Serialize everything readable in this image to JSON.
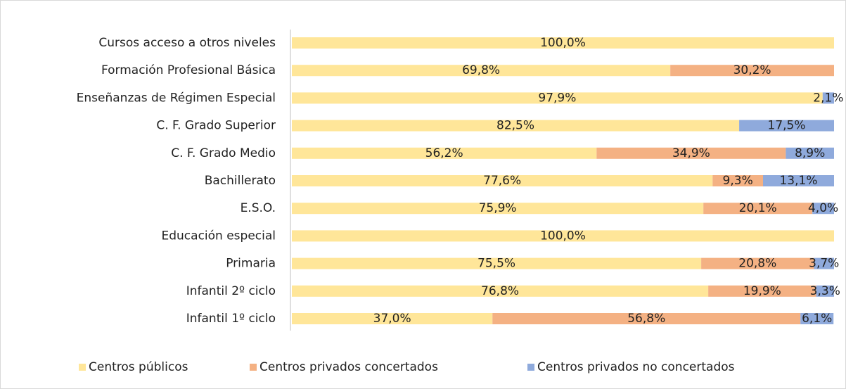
{
  "chart_data": {
    "type": "stacked-bar-horizontal",
    "categories": [
      "Cursos acceso a otros niveles",
      "Formación Profesional Básica",
      "Enseñanzas de Régimen Especial",
      "C. F. Grado Superior",
      "C. F. Grado Medio",
      "Bachillerato",
      "E.S.O.",
      "Educación especial",
      "Primaria",
      "Infantil 2º ciclo",
      "Infantil 1º ciclo"
    ],
    "xlim": [
      0,
      100
    ],
    "series": [
      {
        "name": "Centros públicos",
        "color": "#ffe699",
        "values": [
          100.0,
          69.8,
          97.9,
          82.5,
          56.2,
          77.6,
          75.9,
          100.0,
          75.5,
          76.8,
          37.0
        ],
        "value_labels": [
          "100,0%",
          "69,8%",
          "97,9%",
          "82,5%",
          "56,2%",
          "77,6%",
          "75,9%",
          "100,0%",
          "75,5%",
          "76,8%",
          "37,0%"
        ]
      },
      {
        "name": "Centros privados concertados",
        "color": "#f4b183",
        "values": [
          null,
          30.2,
          null,
          null,
          34.9,
          9.3,
          20.1,
          null,
          20.8,
          19.9,
          56.8
        ],
        "value_labels": [
          null,
          "30,2%",
          null,
          null,
          "34,9%",
          "9,3%",
          "20,1%",
          null,
          "20,8%",
          "19,9%",
          "56,8%"
        ]
      },
      {
        "name": "Centros privados no concertados",
        "color": "#8faadc",
        "values": [
          null,
          null,
          2.1,
          17.5,
          8.9,
          13.1,
          4.0,
          null,
          3.7,
          3.3,
          6.1
        ],
        "value_labels": [
          null,
          null,
          "2,1%",
          "17,5%",
          "8,9%",
          "13,1%",
          "4,0%",
          null,
          "3,7%",
          "3,3%",
          "6,1%"
        ]
      }
    ]
  }
}
